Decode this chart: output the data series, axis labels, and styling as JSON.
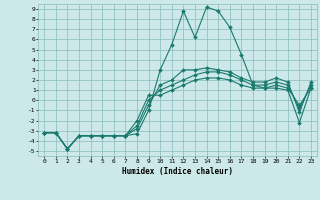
{
  "xlabel": "Humidex (Indice chaleur)",
  "xlim": [
    -0.5,
    23.5
  ],
  "ylim": [
    -5.5,
    9.5
  ],
  "xticks": [
    0,
    1,
    2,
    3,
    4,
    5,
    6,
    7,
    8,
    9,
    10,
    11,
    12,
    13,
    14,
    15,
    16,
    17,
    18,
    19,
    20,
    21,
    22,
    23
  ],
  "yticks": [
    -5,
    -4,
    -3,
    -2,
    -1,
    0,
    1,
    2,
    3,
    4,
    5,
    6,
    7,
    8,
    9
  ],
  "line_color": "#1a7a6e",
  "bg_color": "#cce8e8",
  "grid_color": "#88bbbb",
  "lines": [
    {
      "x": [
        0,
        1,
        2,
        3,
        4,
        5,
        6,
        7,
        8,
        9,
        10,
        11,
        12,
        13,
        14,
        15,
        16,
        17,
        18,
        19,
        20,
        21,
        22,
        23
      ],
      "y": [
        -3.2,
        -3.2,
        -4.8,
        -3.5,
        -3.5,
        -3.5,
        -3.5,
        -3.5,
        -3.3,
        -1.0,
        3.0,
        5.5,
        8.8,
        6.2,
        9.2,
        8.8,
        7.2,
        4.5,
        1.5,
        1.2,
        1.2,
        1.0,
        -2.2,
        1.2
      ]
    },
    {
      "x": [
        0,
        1,
        2,
        3,
        4,
        5,
        6,
        7,
        8,
        9,
        10,
        11,
        12,
        13,
        14,
        15,
        16,
        17,
        18,
        19,
        20,
        21,
        22,
        23
      ],
      "y": [
        -3.2,
        -3.2,
        -4.8,
        -3.5,
        -3.5,
        -3.5,
        -3.5,
        -3.5,
        -2.8,
        -0.5,
        1.5,
        2.0,
        3.0,
        3.0,
        3.2,
        3.0,
        2.8,
        2.2,
        1.8,
        1.8,
        2.2,
        1.8,
        -1.2,
        1.8
      ]
    },
    {
      "x": [
        0,
        1,
        2,
        3,
        4,
        5,
        6,
        7,
        8,
        9,
        10,
        11,
        12,
        13,
        14,
        15,
        16,
        17,
        18,
        19,
        20,
        21,
        22,
        23
      ],
      "y": [
        -3.2,
        -3.2,
        -4.8,
        -3.5,
        -3.5,
        -3.5,
        -3.5,
        -3.5,
        -2.5,
        0.0,
        1.0,
        1.5,
        2.0,
        2.5,
        2.8,
        2.8,
        2.5,
        2.0,
        1.5,
        1.5,
        1.8,
        1.5,
        -0.8,
        1.5
      ]
    },
    {
      "x": [
        0,
        1,
        2,
        3,
        4,
        5,
        6,
        7,
        8,
        9,
        10,
        11,
        12,
        13,
        14,
        15,
        16,
        17,
        18,
        19,
        20,
        21,
        22,
        23
      ],
      "y": [
        -3.2,
        -3.2,
        -4.8,
        -3.5,
        -3.5,
        -3.5,
        -3.5,
        -3.5,
        -2.0,
        0.5,
        0.5,
        1.0,
        1.5,
        2.0,
        2.2,
        2.2,
        2.0,
        1.5,
        1.2,
        1.2,
        1.5,
        1.2,
        -0.5,
        1.2
      ]
    }
  ]
}
